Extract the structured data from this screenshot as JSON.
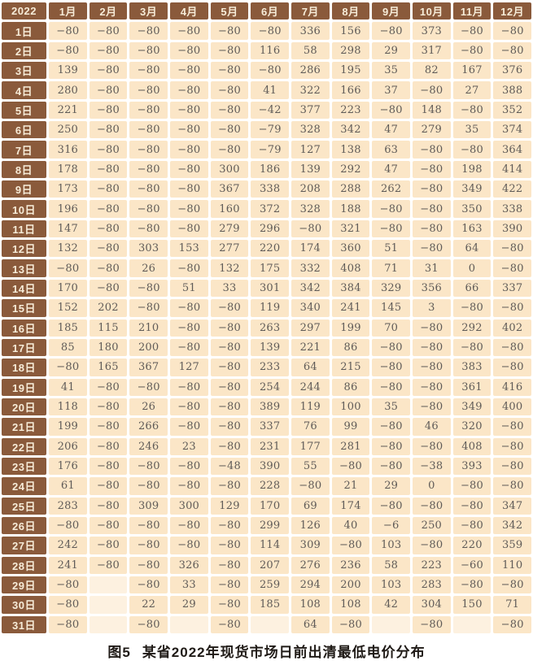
{
  "caption": {
    "figure_label": "图5",
    "title": "某省2022年现货市场日前出清最低电价分布"
  },
  "colors": {
    "header_bg": "#8a5a3b",
    "header_text": "#f7ecd8",
    "cell_bg": "#fbe6c7",
    "empty_cell_bg": "#fdf1e0",
    "value_text": "#5f5b58",
    "grid_gap": "#ffffff"
  },
  "chart_data": {
    "type": "table",
    "title": "图5 某省2022年现货市场日前出清最低电价分布",
    "corner_label": "2022",
    "columns": [
      "1月",
      "2月",
      "3月",
      "4月",
      "5月",
      "6月",
      "7月",
      "8月",
      "9月",
      "10月",
      "11月",
      "12月"
    ],
    "rows": [
      {
        "label": "1日",
        "values": [
          -80,
          -80,
          -80,
          -80,
          -80,
          -80,
          336,
          156,
          -80,
          373,
          -80,
          -80
        ]
      },
      {
        "label": "2日",
        "values": [
          -80,
          -80,
          -80,
          -80,
          -80,
          116,
          58,
          298,
          29,
          317,
          -80,
          -80
        ]
      },
      {
        "label": "3日",
        "values": [
          139,
          -80,
          -80,
          -80,
          -80,
          -80,
          286,
          195,
          35,
          82,
          167,
          376
        ]
      },
      {
        "label": "4日",
        "values": [
          280,
          -80,
          -80,
          -80,
          -80,
          41,
          322,
          166,
          37,
          -80,
          27,
          388
        ]
      },
      {
        "label": "5日",
        "values": [
          221,
          -80,
          -80,
          -80,
          -80,
          -42,
          377,
          223,
          -80,
          148,
          -80,
          352
        ]
      },
      {
        "label": "6日",
        "values": [
          250,
          -80,
          -80,
          -80,
          -80,
          -79,
          328,
          342,
          47,
          279,
          35,
          374
        ]
      },
      {
        "label": "7日",
        "values": [
          316,
          -80,
          -80,
          -80,
          -80,
          -79,
          127,
          138,
          63,
          -80,
          -80,
          364
        ]
      },
      {
        "label": "8日",
        "values": [
          178,
          -80,
          -80,
          -80,
          300,
          186,
          139,
          292,
          47,
          -80,
          198,
          414
        ]
      },
      {
        "label": "9日",
        "values": [
          173,
          -80,
          -80,
          -80,
          367,
          338,
          208,
          288,
          262,
          -80,
          349,
          422
        ]
      },
      {
        "label": "10日",
        "values": [
          196,
          -80,
          -80,
          -80,
          160,
          372,
          328,
          188,
          -80,
          -80,
          350,
          338
        ]
      },
      {
        "label": "11日",
        "values": [
          147,
          -80,
          -80,
          -80,
          279,
          296,
          -80,
          321,
          -80,
          -80,
          163,
          390
        ]
      },
      {
        "label": "12日",
        "values": [
          132,
          -80,
          303,
          153,
          277,
          220,
          174,
          360,
          51,
          -80,
          64,
          -80
        ]
      },
      {
        "label": "13日",
        "values": [
          -80,
          -80,
          26,
          -80,
          132,
          175,
          332,
          408,
          71,
          31,
          0,
          -80
        ]
      },
      {
        "label": "14日",
        "values": [
          170,
          -80,
          -80,
          51,
          33,
          301,
          342,
          384,
          329,
          356,
          66,
          337
        ]
      },
      {
        "label": "15日",
        "values": [
          152,
          202,
          -80,
          -80,
          -80,
          119,
          340,
          241,
          145,
          3,
          -80,
          -80
        ]
      },
      {
        "label": "16日",
        "values": [
          185,
          115,
          210,
          -80,
          -80,
          263,
          297,
          199,
          70,
          -80,
          292,
          402
        ]
      },
      {
        "label": "17日",
        "values": [
          85,
          180,
          200,
          -80,
          -80,
          139,
          221,
          86,
          -80,
          -80,
          -80,
          -80
        ]
      },
      {
        "label": "18日",
        "values": [
          -80,
          165,
          367,
          127,
          -80,
          233,
          64,
          215,
          -80,
          -80,
          383,
          -80
        ]
      },
      {
        "label": "19日",
        "values": [
          41,
          -80,
          -80,
          -80,
          -80,
          254,
          244,
          86,
          -80,
          -80,
          361,
          416
        ]
      },
      {
        "label": "20日",
        "values": [
          118,
          -80,
          26,
          -80,
          -80,
          389,
          119,
          100,
          35,
          -80,
          349,
          400
        ]
      },
      {
        "label": "21日",
        "values": [
          199,
          -80,
          266,
          -80,
          -80,
          337,
          76,
          99,
          -80,
          46,
          320,
          -80
        ]
      },
      {
        "label": "22日",
        "values": [
          206,
          -80,
          246,
          23,
          -80,
          231,
          177,
          281,
          -80,
          -80,
          408,
          -80
        ]
      },
      {
        "label": "23日",
        "values": [
          176,
          -80,
          -80,
          -80,
          -48,
          390,
          55,
          -80,
          -80,
          -38,
          393,
          -80
        ]
      },
      {
        "label": "24日",
        "values": [
          61,
          -80,
          -80,
          -80,
          -80,
          228,
          -80,
          21,
          29,
          0,
          -80,
          -80
        ]
      },
      {
        "label": "25日",
        "values": [
          283,
          -80,
          309,
          300,
          129,
          170,
          69,
          174,
          -80,
          -80,
          -80,
          347
        ]
      },
      {
        "label": "26日",
        "values": [
          -80,
          -80,
          -80,
          -80,
          -80,
          299,
          126,
          40,
          -6,
          250,
          -80,
          342
        ]
      },
      {
        "label": "27日",
        "values": [
          242,
          -80,
          -80,
          -80,
          -80,
          114,
          309,
          -80,
          103,
          -80,
          220,
          359
        ]
      },
      {
        "label": "28日",
        "values": [
          241,
          -80,
          -80,
          326,
          -80,
          207,
          276,
          236,
          58,
          223,
          -60,
          110
        ]
      },
      {
        "label": "29日",
        "values": [
          -80,
          null,
          -80,
          33,
          -80,
          259,
          294,
          200,
          103,
          283,
          -80,
          -80
        ]
      },
      {
        "label": "30日",
        "values": [
          -80,
          null,
          22,
          29,
          -80,
          185,
          108,
          108,
          42,
          304,
          150,
          71
        ]
      },
      {
        "label": "31日",
        "values": [
          -80,
          null,
          -80,
          null,
          -80,
          null,
          64,
          -80,
          null,
          -80,
          null,
          -80
        ]
      }
    ]
  }
}
